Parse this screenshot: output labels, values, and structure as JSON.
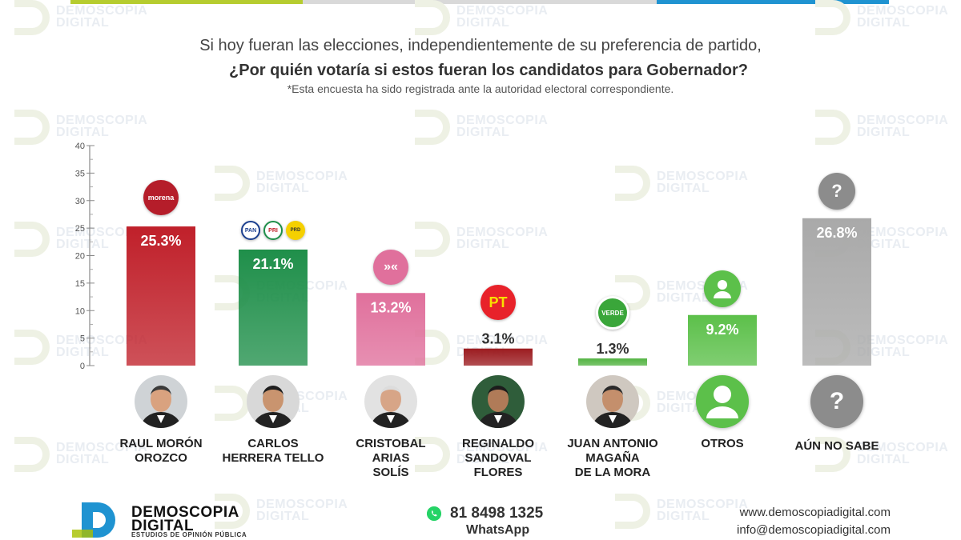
{
  "header": {
    "line1": "Si hoy fueran las elecciones, independientemente de su preferencia de partido,",
    "line2": "¿Por quién votaría si estos fueran los candidatos para Gobernador?",
    "note": "*Esta encuesta ha sido registrada ante la autoridad electoral correspondiente."
  },
  "watermark_text": [
    "DEMOSCOPIA",
    "DIGITAL"
  ],
  "chart_data": {
    "type": "bar",
    "title": "",
    "xlabel": "",
    "ylabel": "",
    "ylim": [
      0,
      40
    ],
    "yticks": [
      0,
      5,
      10,
      15,
      20,
      25,
      30,
      35,
      40
    ],
    "categories": [
      "RAUL MORÓN\nOROZCO",
      "CARLOS\nHERRERA TELLO",
      "CRISTOBAL\nARIAS\nSOLÍS",
      "REGINALDO\nSANDOVAL\nFLORES",
      "JUAN ANTONIO\nMAGAÑA\nDE LA MORA",
      "OTROS",
      "AÚN NO SABE"
    ],
    "values": [
      25.3,
      21.1,
      13.2,
      3.1,
      1.3,
      9.2,
      26.8
    ],
    "value_labels": [
      "25.3%",
      "21.1%",
      "13.2%",
      "3.1%",
      "1.3%",
      "9.2%",
      "26.8%"
    ],
    "colors": [
      "#c0202a",
      "#1f8f4a",
      "#e0709c",
      "#9c1c20",
      "#54b443",
      "#5cc04a",
      "#a9a9a9"
    ],
    "party_logos": [
      [
        "morena"
      ],
      [
        "PAN",
        "PRI",
        "PRD"
      ],
      [
        "MC"
      ],
      [
        "PT"
      ],
      [
        "VERDE"
      ],
      [
        "person-icon"
      ],
      [
        "question-icon"
      ]
    ]
  },
  "footer": {
    "brand_line1": "DEMOSCOPIA",
    "brand_line2": "DIGITAL",
    "brand_tagline": "ESTUDIOS DE OPINIÓN PÚBLICA",
    "phone": "81 8498 1325",
    "whatsapp_label": "WhatsApp",
    "website": "www.demoscopiadigital.com",
    "email": "info@demoscopiadigital.com"
  }
}
